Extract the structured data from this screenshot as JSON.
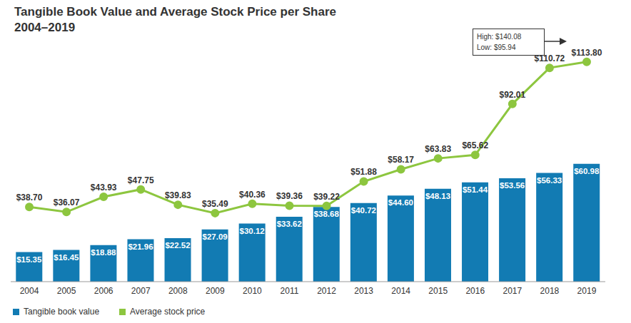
{
  "chart_data": {
    "type": "bar",
    "title": "Tangible Book Value and Average Stock Price per Share",
    "subtitle": "2004–2019",
    "categories": [
      "2004",
      "2005",
      "2006",
      "2007",
      "2008",
      "2009",
      "2010",
      "2011",
      "2012",
      "2013",
      "2014",
      "2015",
      "2016",
      "2017",
      "2018",
      "2019"
    ],
    "series": [
      {
        "name": "Tangible book value",
        "type": "bar",
        "color": "#127bb3",
        "values": [
          15.35,
          16.45,
          18.88,
          21.96,
          22.52,
          27.09,
          30.12,
          33.62,
          38.68,
          40.72,
          44.6,
          48.13,
          51.44,
          53.56,
          56.33,
          60.98
        ],
        "value_labels": [
          "$15.35",
          "$16.45",
          "$18.88",
          "$21.96",
          "$22.52",
          "$27.09",
          "$30.12",
          "$33.62",
          "$38.68",
          "$40.72",
          "$44.60",
          "$48.13",
          "$51.44",
          "$53.56",
          "$56.33",
          "$60.98"
        ]
      },
      {
        "name": "Average stock price",
        "type": "line",
        "color": "#8dc63f",
        "marker": "circle",
        "values": [
          38.7,
          36.07,
          43.93,
          47.75,
          39.83,
          35.49,
          40.36,
          39.36,
          39.22,
          51.88,
          58.17,
          63.83,
          65.62,
          92.01,
          110.72,
          113.8
        ],
        "value_labels": [
          "$38.70",
          "$36.07",
          "$43.93",
          "$47.75",
          "$39.83",
          "$35.49",
          "$40.36",
          "$39.36",
          "$39.22",
          "$51.88",
          "$58.17",
          "$63.83",
          "$65.62",
          "$92.01",
          "$110.72",
          "$113.80"
        ]
      }
    ],
    "annotation": [
      "High: $140.08",
      "Low: $95.94"
    ],
    "ylim": [
      0,
      120
    ],
    "grid": false,
    "data_labels": true,
    "tick_labels": "x",
    "legend": "lower-left"
  }
}
